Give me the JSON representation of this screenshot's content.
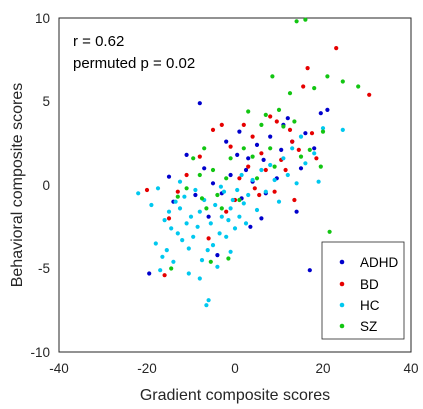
{
  "chart_data": {
    "type": "scatter",
    "xlabel": "Gradient composite scores",
    "ylabel": "Behavioral composite scores",
    "xlim": [
      -40,
      40
    ],
    "ylim": [
      -10,
      10
    ],
    "xticks": [
      "-40",
      "-20",
      "0",
      "20",
      "40"
    ],
    "yticks": [
      "10",
      "5",
      "0",
      "-5",
      "-10"
    ],
    "grid": false,
    "legend_position": "bottom-right",
    "annotations": [
      "r = 0.62",
      "permuted p = 0.02"
    ],
    "series": [
      {
        "name": "ADHD",
        "color": "#0000cc",
        "points": [
          [
            -8,
            4.9
          ],
          [
            -19.5,
            -5.3
          ],
          [
            -15,
            0.5
          ],
          [
            -11,
            1.8
          ],
          [
            -5,
            0.1
          ],
          [
            -3,
            -0.5
          ],
          [
            -1,
            0.6
          ],
          [
            0.5,
            1.8
          ],
          [
            1.5,
            -0.8
          ],
          [
            2.5,
            0.9
          ],
          [
            3,
            1.6
          ],
          [
            4,
            0.2
          ],
          [
            5,
            2.4
          ],
          [
            6.5,
            1.5
          ],
          [
            8,
            2.9
          ],
          [
            9.5,
            0.4
          ],
          [
            10.5,
            2.1
          ],
          [
            12,
            4.0
          ],
          [
            13,
            2.6
          ],
          [
            14,
            -1.6
          ],
          [
            15,
            1.0
          ],
          [
            16,
            3.1
          ],
          [
            18,
            2.2
          ],
          [
            19.5,
            4.3
          ],
          [
            3.5,
            -2.5
          ],
          [
            -6,
            -1.9
          ],
          [
            -2,
            2.6
          ],
          [
            1,
            3.2
          ],
          [
            7,
            -0.5
          ],
          [
            11,
            3.6
          ],
          [
            -14,
            -1.0
          ],
          [
            -4,
            -4.2
          ],
          [
            17,
            -5.1
          ],
          [
            -9,
            -0.6
          ],
          [
            21,
            4.5
          ],
          [
            -7,
            1.0
          ],
          [
            6,
            -2.0
          ]
        ]
      },
      {
        "name": "BD",
        "color": "#e60000",
        "points": [
          [
            -20,
            -0.3
          ],
          [
            -16,
            -5.4
          ],
          [
            -13,
            -0.4
          ],
          [
            -11,
            0.6
          ],
          [
            -8,
            1.7
          ],
          [
            -5,
            3.3
          ],
          [
            -3,
            3.6
          ],
          [
            -1,
            2.3
          ],
          [
            0,
            -0.9
          ],
          [
            1,
            0.4
          ],
          [
            2,
            3.6
          ],
          [
            3,
            1.1
          ],
          [
            4,
            2.9
          ],
          [
            5.5,
            -0.6
          ],
          [
            7,
            0.9
          ],
          [
            8,
            4.1
          ],
          [
            9,
            -0.4
          ],
          [
            10.5,
            1.5
          ],
          [
            11.5,
            0.9
          ],
          [
            12.5,
            3.3
          ],
          [
            13.5,
            -0.9
          ],
          [
            14.5,
            2.1
          ],
          [
            15.5,
            5.9
          ],
          [
            16.5,
            7.0
          ],
          [
            17.5,
            3.1
          ],
          [
            18.5,
            1.6
          ],
          [
            23,
            8.2
          ],
          [
            30.5,
            5.4
          ],
          [
            -6,
            -3.2
          ],
          [
            -2,
            -1.6
          ],
          [
            6,
            1.9
          ],
          [
            9.5,
            3.8
          ],
          [
            13,
            2.6
          ],
          [
            4.5,
            -0.2
          ],
          [
            -15,
            -2.0
          ]
        ]
      },
      {
        "name": "HC",
        "color": "#00c8ef",
        "points": [
          [
            -22,
            -0.5
          ],
          [
            -18,
            -3.5
          ],
          [
            -17,
            -5.1
          ],
          [
            -16,
            -2.1
          ],
          [
            -15.5,
            -3.9
          ],
          [
            -15,
            -1.6
          ],
          [
            -14.5,
            -2.6
          ],
          [
            -14,
            -4.6
          ],
          [
            -13.5,
            -1.0
          ],
          [
            -13,
            -2.9
          ],
          [
            -12.5,
            -1.4
          ],
          [
            -12,
            -3.3
          ],
          [
            -11.5,
            -0.7
          ],
          [
            -11,
            -2.3
          ],
          [
            -10.5,
            -5.3
          ],
          [
            -10,
            -1.9
          ],
          [
            -9.5,
            -3.1
          ],
          [
            -9,
            -0.3
          ],
          [
            -8.5,
            -2.5
          ],
          [
            -8,
            -1.6
          ],
          [
            -7.5,
            -4.5
          ],
          [
            -7,
            -0.9
          ],
          [
            -6.5,
            -7.2
          ],
          [
            -6,
            -6.9
          ],
          [
            -5.5,
            -2.3
          ],
          [
            -5,
            -3.6
          ],
          [
            -4.5,
            -1.2
          ],
          [
            -4,
            -4.9
          ],
          [
            -3.5,
            -2.9
          ],
          [
            -3,
            -1.9
          ],
          [
            -2.5,
            -0.4
          ],
          [
            -2,
            -3.1
          ],
          [
            -1.5,
            -2.1
          ],
          [
            -1,
            -1.4
          ],
          [
            -0.5,
            -0.9
          ],
          [
            0,
            -2.6
          ],
          [
            0.5,
            -0.3
          ],
          [
            1,
            -1.9
          ],
          [
            1.5,
            0.6
          ],
          [
            2,
            -1.1
          ],
          [
            3,
            -0.6
          ],
          [
            4,
            0.3
          ],
          [
            5,
            -1.5
          ],
          [
            6,
            0.9
          ],
          [
            7,
            -0.4
          ],
          [
            8,
            1.2
          ],
          [
            9,
            0.3
          ],
          [
            10,
            -1.0
          ],
          [
            11,
            1.6
          ],
          [
            12,
            0.6
          ],
          [
            13,
            2.2
          ],
          [
            14,
            0.1
          ],
          [
            15,
            2.9
          ],
          [
            16,
            1.3
          ],
          [
            18,
            1.9
          ],
          [
            20,
            3.4
          ],
          [
            24.5,
            3.3
          ],
          [
            -19,
            -1.2
          ],
          [
            -17.5,
            -0.2
          ],
          [
            -16.5,
            -4.3
          ],
          [
            -10.5,
            -3.8
          ],
          [
            -8,
            -5.6
          ],
          [
            -1,
            -4.0
          ],
          [
            2.5,
            -2.3
          ],
          [
            -6.2,
            -3.9
          ],
          [
            -3.2,
            -0.1
          ],
          [
            19,
            0.2
          ],
          [
            -12.5,
            0.2
          ]
        ]
      },
      {
        "name": "SZ",
        "color": "#12c512",
        "points": [
          [
            -13,
            -0.7
          ],
          [
            -11,
            -0.2
          ],
          [
            -9.5,
            1.6
          ],
          [
            -8,
            0.6
          ],
          [
            -7.5,
            -0.8
          ],
          [
            -6.5,
            -1.4
          ],
          [
            -5,
            0.9
          ],
          [
            -4,
            -0.6
          ],
          [
            -3,
            -1.4
          ],
          [
            -2,
            0.4
          ],
          [
            -1,
            1.6
          ],
          [
            1,
            -0.9
          ],
          [
            2,
            2.2
          ],
          [
            3,
            4.4
          ],
          [
            4,
            1.7
          ],
          [
            5,
            0.4
          ],
          [
            6,
            3.6
          ],
          [
            7,
            4.2
          ],
          [
            8,
            2.2
          ],
          [
            9,
            1.1
          ],
          [
            10,
            4.5
          ],
          [
            11,
            3.5
          ],
          [
            12.5,
            5.5
          ],
          [
            13.5,
            3.8
          ],
          [
            14,
            9.8
          ],
          [
            16,
            9.9
          ],
          [
            17,
            2.1
          ],
          [
            18,
            5.8
          ],
          [
            20,
            3.2
          ],
          [
            21,
            6.5
          ],
          [
            21.5,
            -2.8
          ],
          [
            24.5,
            6.2
          ],
          [
            28,
            5.9
          ],
          [
            15,
            1.7
          ],
          [
            -5.5,
            -4.6
          ],
          [
            -1.5,
            -4.4
          ],
          [
            -14.5,
            -5.0
          ],
          [
            8.5,
            6.5
          ],
          [
            19.5,
            1.1
          ],
          [
            -7,
            2.2
          ]
        ]
      }
    ]
  }
}
